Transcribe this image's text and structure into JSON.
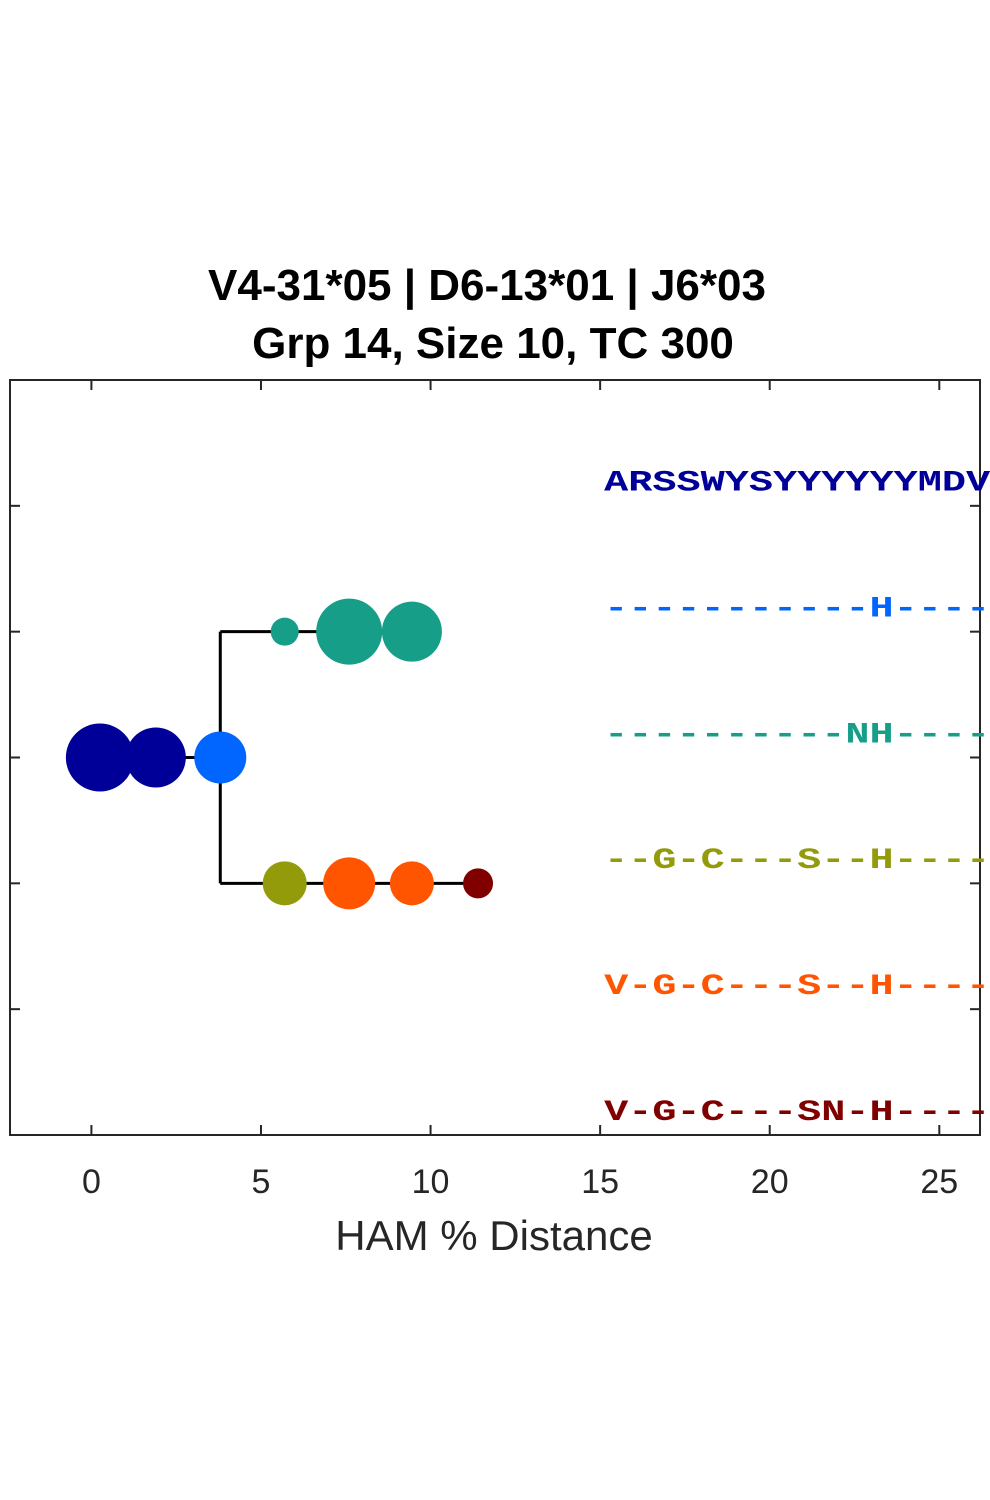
{
  "chart_data": {
    "type": "scatter",
    "title_lines": [
      "V4-31*05 | D6-13*01 | J6*03",
      "Grp 14, Size 10, TC 300"
    ],
    "xlabel": "HAM % Distance",
    "ylabel": "",
    "xlim": [
      -2.4,
      26.2
    ],
    "ylim": [
      0,
      6
    ],
    "x_ticks": [
      0,
      5,
      10,
      15,
      20,
      25
    ],
    "y_tick_count": 5,
    "grid": false,
    "nodes": [
      {
        "x": 0.25,
        "y": 3,
        "size": 34,
        "color": "#000099"
      },
      {
        "x": 1.9,
        "y": 3,
        "size": 30,
        "color": "#000099"
      },
      {
        "x": 3.8,
        "y": 3,
        "size": 26,
        "color": "#0066ff"
      },
      {
        "x": 5.7,
        "y": 4,
        "size": 14,
        "color": "#169e89"
      },
      {
        "x": 7.6,
        "y": 4,
        "size": 33,
        "color": "#169e89"
      },
      {
        "x": 9.45,
        "y": 4,
        "size": 30,
        "color": "#169e89"
      },
      {
        "x": 5.7,
        "y": 2,
        "size": 22,
        "color": "#939b0b"
      },
      {
        "x": 7.6,
        "y": 2,
        "size": 26,
        "color": "#ff5500"
      },
      {
        "x": 9.45,
        "y": 2,
        "size": 22,
        "color": "#ff5500"
      },
      {
        "x": 11.4,
        "y": 2,
        "size": 15,
        "color": "#800000"
      }
    ],
    "edges": [
      {
        "x": [
          0.25,
          3.8
        ],
        "y": [
          3,
          3
        ]
      },
      {
        "x": [
          3.8,
          3.8
        ],
        "y": [
          2,
          4
        ]
      },
      {
        "x": [
          3.8,
          9.45
        ],
        "y": [
          4,
          4
        ]
      },
      {
        "x": [
          3.8,
          11.4
        ],
        "y": [
          2,
          2
        ]
      }
    ],
    "sequences": [
      {
        "text": "ARSSWYSYYYYYYMDV",
        "y": 5.2,
        "color": "#000099"
      },
      {
        "text": "-----------H----",
        "y": 4.2,
        "color": "#0066ff"
      },
      {
        "text": "----------NH----",
        "y": 3.2,
        "color": "#169e89"
      },
      {
        "text": "--G-C---S--H----",
        "y": 2.2,
        "color": "#939b0b"
      },
      {
        "text": "V-G-C---S--H----",
        "y": 1.2,
        "color": "#ff5500"
      },
      {
        "text": "V-G-C---SN-H----",
        "y": 0.2,
        "color": "#800000"
      }
    ],
    "sequence_x_start": 15
  }
}
